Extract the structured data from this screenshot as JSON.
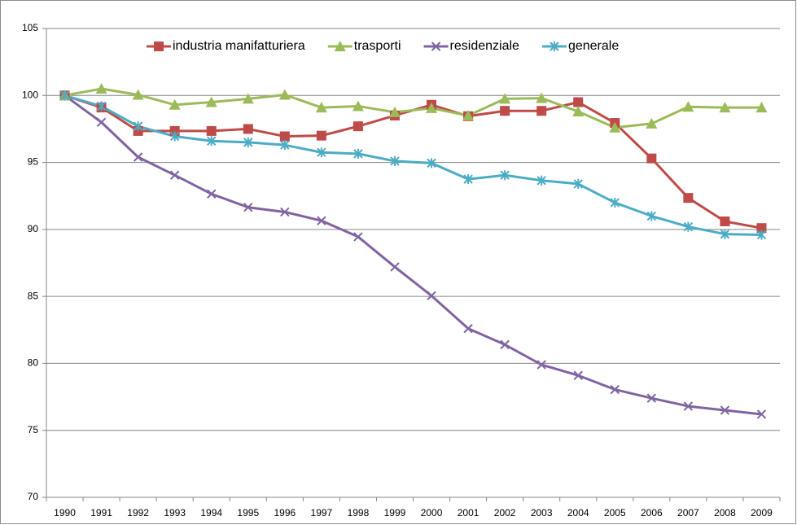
{
  "chart_data": {
    "type": "line",
    "categories": [
      "1990",
      "1991",
      "1992",
      "1993",
      "1994",
      "1995",
      "1996",
      "1997",
      "1998",
      "1999",
      "2000",
      "2001",
      "2002",
      "2003",
      "2004",
      "2005",
      "2006",
      "2007",
      "2008",
      "2009"
    ],
    "series": [
      {
        "name": "industria manifatturiera",
        "color": "#be4b48",
        "marker": "square",
        "values": [
          100,
          99.1,
          97.35,
          97.35,
          97.35,
          97.5,
          96.95,
          97.0,
          97.7,
          98.5,
          99.3,
          98.45,
          98.85,
          98.85,
          99.5,
          97.95,
          95.3,
          92.35,
          90.6,
          90.1
        ]
      },
      {
        "name": "trasporti",
        "color": "#9bbb59",
        "marker": "triangle",
        "values": [
          100,
          100.5,
          100.05,
          99.3,
          99.5,
          99.75,
          100.05,
          99.1,
          99.2,
          98.75,
          99.05,
          98.5,
          99.75,
          99.8,
          98.8,
          97.6,
          97.9,
          99.15,
          99.1,
          99.1
        ]
      },
      {
        "name": "residenziale",
        "color": "#8064a2",
        "marker": "x",
        "values": [
          100,
          98.0,
          95.4,
          94.05,
          92.65,
          91.65,
          91.3,
          90.65,
          89.45,
          87.2,
          85.05,
          82.6,
          81.4,
          79.9,
          79.1,
          78.05,
          77.4,
          76.8,
          76.5,
          76.2
        ]
      },
      {
        "name": "generale",
        "color": "#4bacc6",
        "marker": "star",
        "values": [
          100,
          99.2,
          97.7,
          96.95,
          96.6,
          96.5,
          96.3,
          95.75,
          95.65,
          95.1,
          94.95,
          93.75,
          94.05,
          93.65,
          93.4,
          92.0,
          91.0,
          90.2,
          89.65,
          89.6
        ]
      }
    ],
    "ylim": [
      70,
      105
    ],
    "yticks": [
      70,
      75,
      80,
      85,
      90,
      95,
      100,
      105
    ],
    "grid": true,
    "legend": "top"
  }
}
